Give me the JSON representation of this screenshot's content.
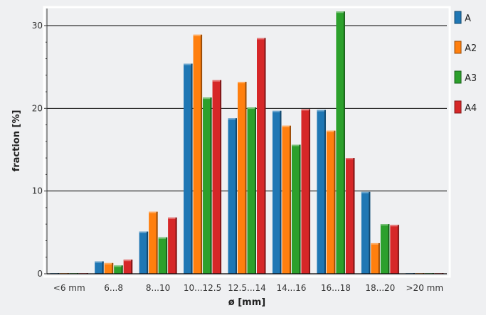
{
  "chart_data": {
    "type": "bar",
    "title": "",
    "xlabel": "ø [mm]",
    "ylabel": "fraction [%]",
    "ylim": [
      0,
      32
    ],
    "yticks": [
      0,
      10,
      20,
      30
    ],
    "grid": true,
    "legend_position": "right",
    "categories": [
      "<6 mm",
      "6...8",
      "8...10",
      "10...12.5",
      "12.5...14",
      "14...16",
      "16...18",
      "18...20",
      ">20 mm"
    ],
    "series": [
      {
        "name": "A",
        "color": "#1f77b4",
        "values": [
          0,
          1.5,
          5.1,
          25.4,
          18.8,
          19.7,
          19.8,
          9.9,
          0
        ]
      },
      {
        "name": "A2",
        "color": "#ff7f0e",
        "values": [
          0,
          1.3,
          7.5,
          28.9,
          23.2,
          17.9,
          17.3,
          3.7,
          0
        ]
      },
      {
        "name": "A3",
        "color": "#2ca02c",
        "values": [
          0,
          1.0,
          4.4,
          21.3,
          20.1,
          15.6,
          31.7,
          6.0,
          0
        ]
      },
      {
        "name": "A4",
        "color": "#d62728",
        "values": [
          0,
          1.7,
          6.8,
          23.4,
          28.5,
          19.9,
          14.0,
          5.9,
          0
        ]
      }
    ]
  }
}
